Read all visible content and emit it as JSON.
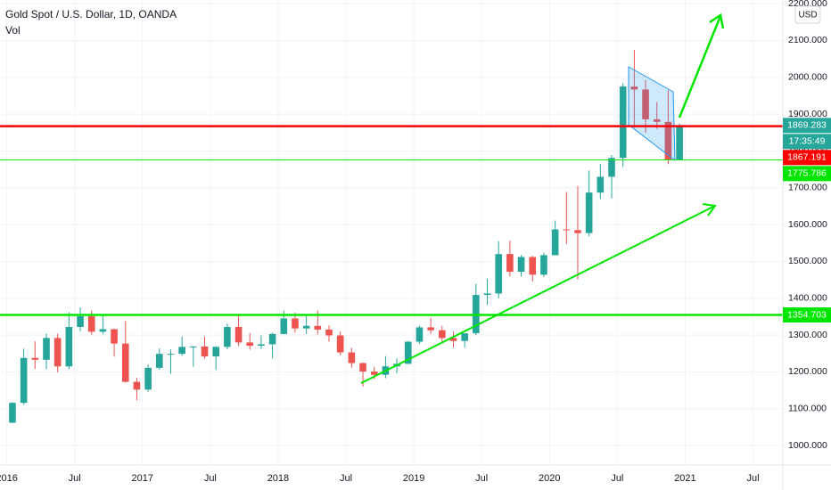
{
  "chart_data": {
    "type": "candlestick",
    "title": "Gold Spot / U.S. Dollar, 1D, OANDA",
    "subtitle": "Vol",
    "currency": "USD",
    "x": [
      "2016-01",
      "2016-02",
      "2016-03",
      "2016-04",
      "2016-05",
      "2016-06",
      "2016-07",
      "2016-08",
      "2016-09",
      "2016-10",
      "2016-11",
      "2016-12",
      "2017-01",
      "2017-02",
      "2017-03",
      "2017-04",
      "2017-05",
      "2017-06",
      "2017-07",
      "2017-08",
      "2017-09",
      "2017-10",
      "2017-11",
      "2017-12",
      "2018-01",
      "2018-02",
      "2018-03",
      "2018-04",
      "2018-05",
      "2018-06",
      "2018-07",
      "2018-08",
      "2018-09",
      "2018-10",
      "2018-11",
      "2018-12",
      "2019-01",
      "2019-02",
      "2019-03",
      "2019-04",
      "2019-05",
      "2019-06",
      "2019-07",
      "2019-08",
      "2019-09",
      "2019-10",
      "2019-11",
      "2019-12",
      "2020-01",
      "2020-02",
      "2020-03",
      "2020-04",
      "2020-05",
      "2020-06",
      "2020-07",
      "2020-08",
      "2020-09",
      "2020-10",
      "2020-11",
      "2020-12"
    ],
    "open": [
      1062,
      1116,
      1238,
      1233,
      1292,
      1215,
      1322,
      1351,
      1309,
      1316,
      1277,
      1173,
      1152,
      1211,
      1249,
      1249,
      1268,
      1269,
      1242,
      1268,
      1322,
      1280,
      1271,
      1275,
      1303,
      1345,
      1318,
      1325,
      1315,
      1299,
      1253,
      1224,
      1201,
      1192,
      1215,
      1222,
      1282,
      1321,
      1313,
      1292,
      1284,
      1305,
      1409,
      1413,
      1520,
      1472,
      1512,
      1464,
      1517,
      1587,
      1585,
      1577,
      1687,
      1730,
      1781,
      1975,
      1967,
      1886,
      1879,
      1776
    ],
    "high": [
      1118,
      1263,
      1283,
      1304,
      1304,
      1362,
      1375,
      1367,
      1352,
      1318,
      1338,
      1183,
      1220,
      1264,
      1261,
      1296,
      1270,
      1296,
      1270,
      1331,
      1358,
      1306,
      1299,
      1307,
      1366,
      1361,
      1356,
      1366,
      1326,
      1310,
      1265,
      1225,
      1214,
      1243,
      1237,
      1284,
      1326,
      1347,
      1325,
      1310,
      1305,
      1439,
      1453,
      1555,
      1557,
      1517,
      1515,
      1524,
      1611,
      1689,
      1704,
      1747,
      1765,
      1789,
      1984,
      2075,
      1992,
      1933,
      1965,
      1875
    ],
    "low": [
      1061,
      1111,
      1208,
      1207,
      1199,
      1207,
      1310,
      1301,
      1302,
      1241,
      1171,
      1123,
      1146,
      1206,
      1195,
      1244,
      1214,
      1236,
      1205,
      1261,
      1270,
      1260,
      1262,
      1236,
      1302,
      1307,
      1303,
      1302,
      1282,
      1245,
      1211,
      1160,
      1180,
      1183,
      1196,
      1221,
      1276,
      1303,
      1281,
      1266,
      1267,
      1300,
      1382,
      1400,
      1459,
      1459,
      1445,
      1458,
      1517,
      1547,
      1451,
      1568,
      1670,
      1671,
      1757,
      1863,
      1849,
      1860,
      1764,
      1775
    ],
    "close": [
      1116,
      1238,
      1233,
      1292,
      1215,
      1322,
      1351,
      1309,
      1316,
      1277,
      1173,
      1152,
      1211,
      1249,
      1249,
      1268,
      1269,
      1242,
      1268,
      1322,
      1280,
      1271,
      1275,
      1303,
      1345,
      1318,
      1325,
      1315,
      1299,
      1253,
      1224,
      1201,
      1192,
      1215,
      1222,
      1282,
      1321,
      1313,
      1292,
      1284,
      1305,
      1409,
      1413,
      1520,
      1472,
      1512,
      1464,
      1517,
      1587,
      1585,
      1577,
      1687,
      1730,
      1781,
      1975,
      1967,
      1886,
      1879,
      1776,
      1869
    ],
    "up_color": "#26a69a",
    "down_color": "#ef5350",
    "xlim": [
      2015.95,
      2021.72
    ],
    "ylim": [
      947,
      2210
    ],
    "xticks": [
      {
        "value": 2016,
        "label": "2016"
      },
      {
        "value": 2016.5,
        "label": "Jul"
      },
      {
        "value": 2017,
        "label": "2017"
      },
      {
        "value": 2017.5,
        "label": "Jul"
      },
      {
        "value": 2018,
        "label": "2018"
      },
      {
        "value": 2018.5,
        "label": "Jul"
      },
      {
        "value": 2019,
        "label": "2019"
      },
      {
        "value": 2019.5,
        "label": "Jul"
      },
      {
        "value": 2020,
        "label": "2020"
      },
      {
        "value": 2020.5,
        "label": "Jul"
      },
      {
        "value": 2021,
        "label": "2021"
      },
      {
        "value": 2021.5,
        "label": "Jul"
      }
    ],
    "yticks": [
      {
        "value": 1000,
        "label": "1000.000"
      },
      {
        "value": 1100,
        "label": "1100.000"
      },
      {
        "value": 1200,
        "label": "1200.000"
      },
      {
        "value": 1300,
        "label": "1300.000"
      },
      {
        "value": 1400,
        "label": "1400.000"
      },
      {
        "value": 1500,
        "label": "1500.000"
      },
      {
        "value": 1600,
        "label": "1600.000"
      },
      {
        "value": 1700,
        "label": "1700.000"
      },
      {
        "value": 1800,
        "label": "1800.000"
      },
      {
        "value": 1900,
        "label": "1900.000"
      },
      {
        "value": 2000,
        "label": "2000.000"
      },
      {
        "value": 2100,
        "label": "2100.000"
      },
      {
        "value": 2200,
        "label": "2200.000"
      }
    ],
    "grid": true,
    "current_price": {
      "value": 1869.283,
      "label": "1869.283",
      "countdown": "17:35:49",
      "color": "#26a69a"
    },
    "hlines": [
      {
        "value": 1867.191,
        "label": "1867.191",
        "color": "#ff0000",
        "width": 2.5
      },
      {
        "value": 1775.786,
        "label": "1775.786",
        "color": "#00e600",
        "width": 1
      },
      {
        "value": 1354.703,
        "label": "1354.703",
        "color": "#00e600",
        "width": 2.5
      }
    ]
  }
}
